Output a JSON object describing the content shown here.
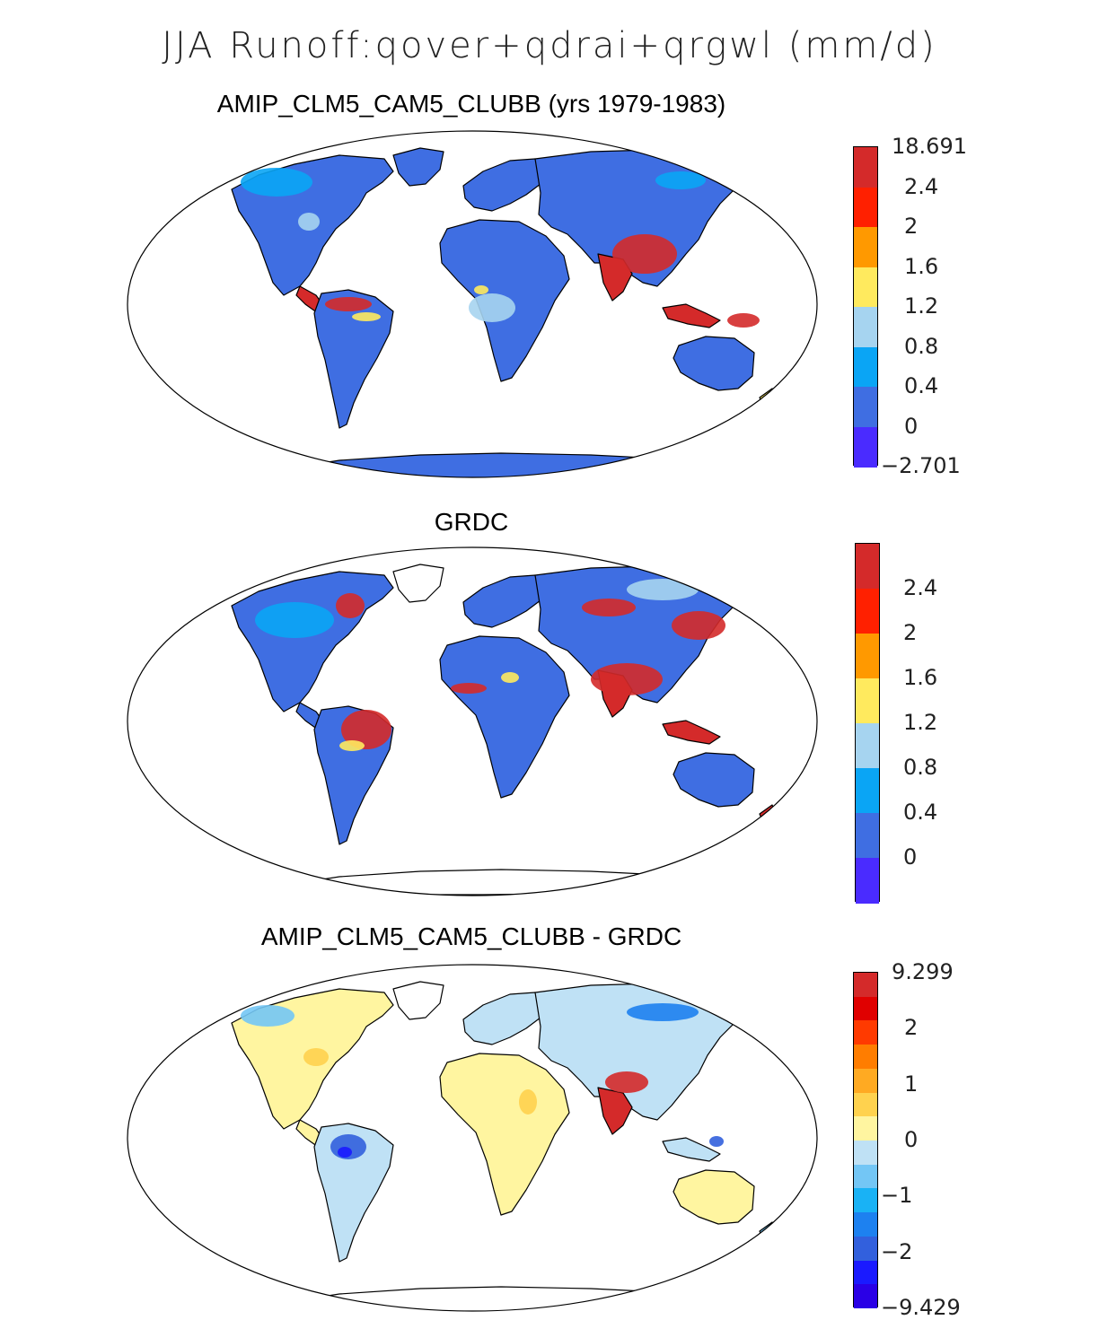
{
  "title": "JJA Runoff:qover+qdrai+qrgwl (mm/d)",
  "panels": [
    {
      "title": "AMIP_CLM5_CAM5_CLUBB (yrs 1979-1983)",
      "colorbar": {
        "labels": [
          "18.691",
          "2.4",
          "2",
          "1.6",
          "1.2",
          "0.8",
          "0.4",
          "0",
          "−2.701"
        ],
        "colors": [
          "#d42a2a",
          "#ff2000",
          "#ff9900",
          "#ffea5e",
          "#a6d4f0",
          "#0aa5f5",
          "#3f6ee2",
          "#4a2bff"
        ]
      }
    },
    {
      "title": "GRDC",
      "colorbar": {
        "labels": [
          "2.4",
          "2",
          "1.6",
          "1.2",
          "0.8",
          "0.4",
          "0"
        ],
        "colors": [
          "#d42a2a",
          "#ff2000",
          "#ff9900",
          "#ffea5e",
          "#a6d4f0",
          "#0aa5f5",
          "#3f6ee2",
          "#4a2bff"
        ]
      }
    },
    {
      "title": "AMIP_CLM5_CAM5_CLUBB - GRDC",
      "colorbar": {
        "labels": [
          "9.299",
          "2",
          "1",
          "0",
          "−1",
          "−2",
          "−9.429"
        ],
        "colors": [
          "#d42a2a",
          "#e00000",
          "#ff3a00",
          "#ff7d00",
          "#ffaa22",
          "#ffd24e",
          "#fff5a0",
          "#bfe1f5",
          "#73c6f5",
          "#19b2f5",
          "#1d81f0",
          "#3260dd",
          "#1a1aff",
          "#2a00e6"
        ]
      }
    }
  ]
}
